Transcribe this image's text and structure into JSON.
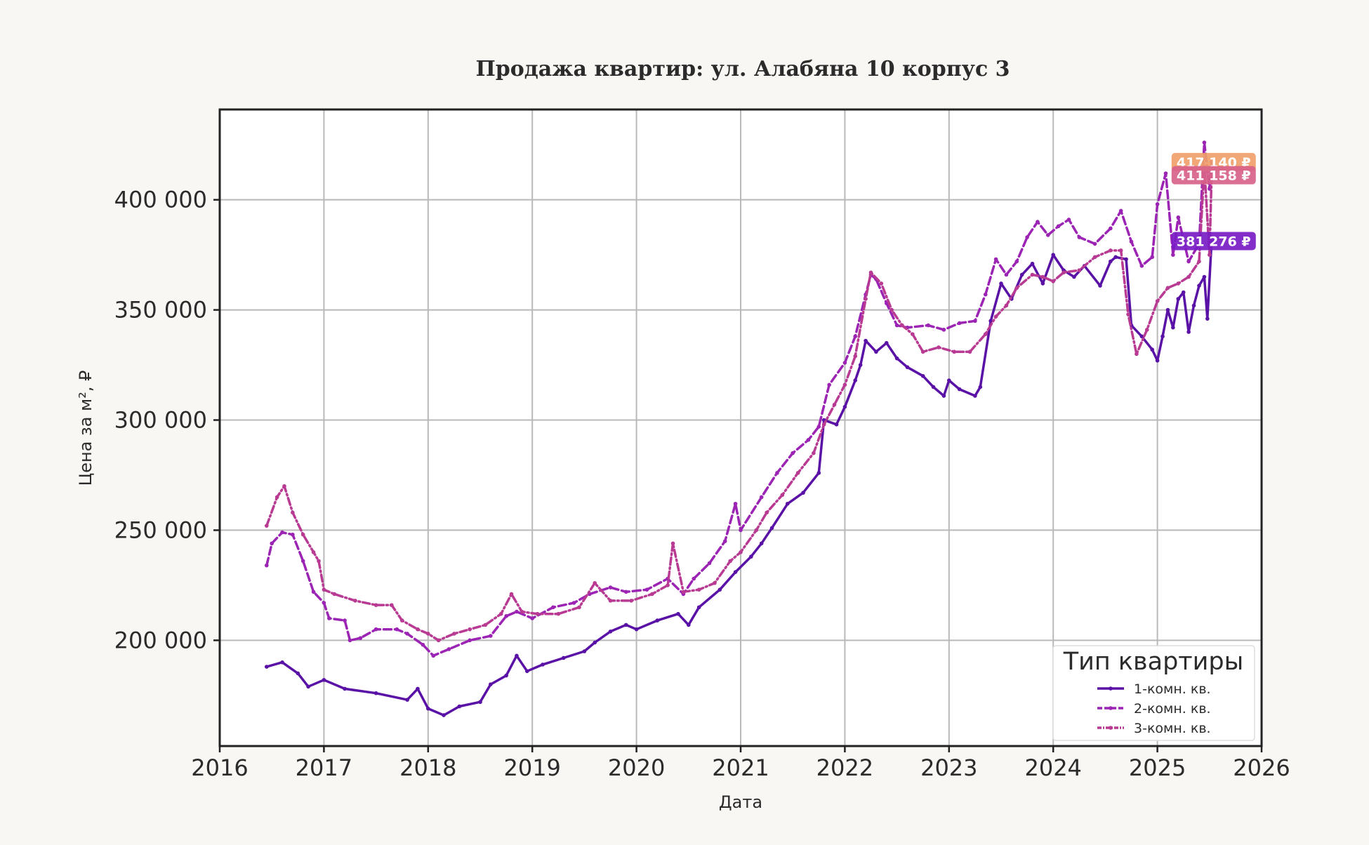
{
  "chart_data": {
    "type": "line",
    "title": "Продажа квартир: ул. Алабяна 10 корпус 3",
    "xlabel": "Дата",
    "ylabel": "Цена за м², ₽",
    "x_ticks": [
      "2016",
      "2017",
      "2018",
      "2019",
      "2020",
      "2021",
      "2022",
      "2023",
      "2024",
      "2025",
      "2026"
    ],
    "y_ticks": [
      {
        "value": 200000,
        "label": "200 000"
      },
      {
        "value": 250000,
        "label": "250 000"
      },
      {
        "value": 300000,
        "label": "300 000"
      },
      {
        "value": 350000,
        "label": "350 000"
      },
      {
        "value": 400000,
        "label": "400 000"
      }
    ],
    "xlim": [
      2016.0,
      2026.0
    ],
    "ylim": [
      152000,
      441000
    ],
    "grid": true,
    "legend": {
      "title": "Тип квартиры",
      "position": "lower-right"
    },
    "series": [
      {
        "name": "1-комн. кв.",
        "color": "#5a12a6",
        "dash": "solid",
        "end_label": "381 276 ₽",
        "badge_color": "#7a1cc4",
        "points": [
          [
            2016.45,
            188000
          ],
          [
            2016.6,
            190000
          ],
          [
            2016.75,
            185000
          ],
          [
            2016.85,
            179000
          ],
          [
            2017.0,
            182000
          ],
          [
            2017.2,
            178000
          ],
          [
            2017.5,
            176000
          ],
          [
            2017.8,
            173000
          ],
          [
            2017.9,
            178000
          ],
          [
            2018.0,
            169000
          ],
          [
            2018.15,
            166000
          ],
          [
            2018.3,
            170000
          ],
          [
            2018.5,
            172000
          ],
          [
            2018.6,
            180000
          ],
          [
            2018.75,
            184000
          ],
          [
            2018.85,
            193000
          ],
          [
            2018.95,
            186000
          ],
          [
            2019.1,
            189000
          ],
          [
            2019.3,
            192000
          ],
          [
            2019.5,
            195000
          ],
          [
            2019.6,
            199000
          ],
          [
            2019.75,
            204000
          ],
          [
            2019.9,
            207000
          ],
          [
            2020.0,
            205000
          ],
          [
            2020.2,
            209000
          ],
          [
            2020.4,
            212000
          ],
          [
            2020.5,
            207000
          ],
          [
            2020.6,
            215000
          ],
          [
            2020.8,
            223000
          ],
          [
            2020.95,
            231000
          ],
          [
            2021.1,
            238000
          ],
          [
            2021.2,
            244000
          ],
          [
            2021.3,
            251000
          ],
          [
            2021.45,
            262000
          ],
          [
            2021.6,
            267000
          ],
          [
            2021.75,
            276000
          ],
          [
            2021.8,
            300000
          ],
          [
            2021.92,
            298000
          ],
          [
            2022.0,
            306000
          ],
          [
            2022.1,
            318000
          ],
          [
            2022.15,
            325000
          ],
          [
            2022.2,
            336000
          ],
          [
            2022.3,
            331000
          ],
          [
            2022.4,
            335000
          ],
          [
            2022.5,
            328000
          ],
          [
            2022.6,
            324000
          ],
          [
            2022.75,
            320000
          ],
          [
            2022.85,
            315000
          ],
          [
            2022.95,
            311000
          ],
          [
            2023.0,
            318000
          ],
          [
            2023.1,
            314000
          ],
          [
            2023.25,
            311000
          ],
          [
            2023.3,
            315000
          ],
          [
            2023.4,
            345000
          ],
          [
            2023.5,
            362000
          ],
          [
            2023.6,
            355000
          ],
          [
            2023.7,
            366000
          ],
          [
            2023.8,
            371000
          ],
          [
            2023.9,
            362000
          ],
          [
            2024.0,
            375000
          ],
          [
            2024.1,
            368000
          ],
          [
            2024.2,
            365000
          ],
          [
            2024.3,
            370000
          ],
          [
            2024.45,
            361000
          ],
          [
            2024.55,
            372000
          ],
          [
            2024.6,
            374000
          ],
          [
            2024.7,
            373000
          ],
          [
            2024.75,
            343000
          ],
          [
            2024.85,
            338000
          ],
          [
            2024.95,
            332000
          ],
          [
            2025.0,
            327000
          ],
          [
            2025.05,
            338000
          ],
          [
            2025.1,
            350000
          ],
          [
            2025.15,
            342000
          ],
          [
            2025.2,
            355000
          ],
          [
            2025.25,
            358000
          ],
          [
            2025.3,
            340000
          ],
          [
            2025.35,
            352000
          ],
          [
            2025.4,
            361000
          ],
          [
            2025.45,
            365000
          ],
          [
            2025.48,
            346000
          ],
          [
            2025.52,
            381276
          ]
        ]
      },
      {
        "name": "2-комн. кв.",
        "color": "#9c24b4",
        "dash": "dashed",
        "end_label": "417 140 ₽",
        "badge_color": "#f0a06a",
        "points": [
          [
            2016.45,
            234000
          ],
          [
            2016.5,
            244000
          ],
          [
            2016.6,
            249000
          ],
          [
            2016.7,
            248000
          ],
          [
            2016.8,
            236000
          ],
          [
            2016.9,
            222000
          ],
          [
            2017.0,
            217000
          ],
          [
            2017.05,
            210000
          ],
          [
            2017.2,
            209000
          ],
          [
            2017.25,
            200000
          ],
          [
            2017.35,
            201000
          ],
          [
            2017.5,
            205000
          ],
          [
            2017.7,
            205000
          ],
          [
            2017.8,
            203000
          ],
          [
            2017.95,
            198000
          ],
          [
            2018.05,
            193000
          ],
          [
            2018.2,
            196000
          ],
          [
            2018.4,
            200000
          ],
          [
            2018.6,
            202000
          ],
          [
            2018.75,
            211000
          ],
          [
            2018.85,
            213000
          ],
          [
            2019.0,
            210000
          ],
          [
            2019.2,
            215000
          ],
          [
            2019.4,
            217000
          ],
          [
            2019.55,
            221000
          ],
          [
            2019.75,
            224000
          ],
          [
            2019.9,
            222000
          ],
          [
            2020.1,
            223000
          ],
          [
            2020.3,
            228000
          ],
          [
            2020.45,
            221000
          ],
          [
            2020.55,
            228000
          ],
          [
            2020.7,
            235000
          ],
          [
            2020.85,
            245000
          ],
          [
            2020.95,
            262000
          ],
          [
            2021.0,
            250000
          ],
          [
            2021.2,
            265000
          ],
          [
            2021.35,
            276000
          ],
          [
            2021.5,
            285000
          ],
          [
            2021.65,
            291000
          ],
          [
            2021.75,
            297000
          ],
          [
            2021.85,
            316000
          ],
          [
            2022.0,
            326000
          ],
          [
            2022.1,
            338000
          ],
          [
            2022.2,
            357000
          ],
          [
            2022.25,
            366000
          ],
          [
            2022.3,
            364000
          ],
          [
            2022.4,
            353000
          ],
          [
            2022.5,
            343000
          ],
          [
            2022.6,
            342000
          ],
          [
            2022.8,
            343000
          ],
          [
            2022.95,
            341000
          ],
          [
            2023.1,
            344000
          ],
          [
            2023.25,
            345000
          ],
          [
            2023.35,
            357000
          ],
          [
            2023.45,
            373000
          ],
          [
            2023.55,
            366000
          ],
          [
            2023.65,
            372000
          ],
          [
            2023.75,
            383000
          ],
          [
            2023.85,
            390000
          ],
          [
            2023.95,
            384000
          ],
          [
            2024.05,
            388000
          ],
          [
            2024.15,
            391000
          ],
          [
            2024.25,
            383000
          ],
          [
            2024.4,
            380000
          ],
          [
            2024.55,
            387000
          ],
          [
            2024.65,
            395000
          ],
          [
            2024.75,
            381000
          ],
          [
            2024.85,
            370000
          ],
          [
            2024.95,
            374000
          ],
          [
            2025.0,
            398000
          ],
          [
            2025.08,
            412000
          ],
          [
            2025.15,
            375000
          ],
          [
            2025.2,
            392000
          ],
          [
            2025.3,
            372000
          ],
          [
            2025.4,
            380000
          ],
          [
            2025.45,
            426000
          ],
          [
            2025.5,
            405000
          ],
          [
            2025.52,
            417140
          ]
        ]
      },
      {
        "name": "3-комн. кв.",
        "color": "#b83a92",
        "dash": "dashdot",
        "end_label": "411 158 ₽",
        "badge_color": "#d8628a",
        "points": [
          [
            2016.45,
            252000
          ],
          [
            2016.55,
            265000
          ],
          [
            2016.62,
            270000
          ],
          [
            2016.7,
            258000
          ],
          [
            2016.8,
            248000
          ],
          [
            2016.9,
            240000
          ],
          [
            2016.95,
            236000
          ],
          [
            2017.0,
            223000
          ],
          [
            2017.1,
            221000
          ],
          [
            2017.3,
            218000
          ],
          [
            2017.5,
            216000
          ],
          [
            2017.65,
            216000
          ],
          [
            2017.75,
            209000
          ],
          [
            2017.9,
            205000
          ],
          [
            2018.0,
            203000
          ],
          [
            2018.1,
            200000
          ],
          [
            2018.25,
            203000
          ],
          [
            2018.4,
            205000
          ],
          [
            2018.55,
            207000
          ],
          [
            2018.7,
            212000
          ],
          [
            2018.8,
            221000
          ],
          [
            2018.9,
            213000
          ],
          [
            2019.05,
            212000
          ],
          [
            2019.25,
            212000
          ],
          [
            2019.45,
            215000
          ],
          [
            2019.6,
            226000
          ],
          [
            2019.75,
            218000
          ],
          [
            2019.95,
            218000
          ],
          [
            2020.15,
            221000
          ],
          [
            2020.3,
            225000
          ],
          [
            2020.35,
            244000
          ],
          [
            2020.45,
            222000
          ],
          [
            2020.6,
            223000
          ],
          [
            2020.75,
            226000
          ],
          [
            2020.9,
            236000
          ],
          [
            2021.0,
            240000
          ],
          [
            2021.15,
            250000
          ],
          [
            2021.25,
            258000
          ],
          [
            2021.4,
            266000
          ],
          [
            2021.55,
            276000
          ],
          [
            2021.7,
            285000
          ],
          [
            2021.8,
            298000
          ],
          [
            2021.9,
            307000
          ],
          [
            2022.0,
            316000
          ],
          [
            2022.1,
            329000
          ],
          [
            2022.2,
            355000
          ],
          [
            2022.25,
            367000
          ],
          [
            2022.35,
            362000
          ],
          [
            2022.45,
            350000
          ],
          [
            2022.55,
            343000
          ],
          [
            2022.65,
            339000
          ],
          [
            2022.75,
            331000
          ],
          [
            2022.9,
            333000
          ],
          [
            2023.05,
            331000
          ],
          [
            2023.2,
            331000
          ],
          [
            2023.35,
            339000
          ],
          [
            2023.45,
            347000
          ],
          [
            2023.55,
            352000
          ],
          [
            2023.65,
            360000
          ],
          [
            2023.8,
            366000
          ],
          [
            2023.9,
            365000
          ],
          [
            2024.0,
            363000
          ],
          [
            2024.1,
            367000
          ],
          [
            2024.25,
            368000
          ],
          [
            2024.4,
            374000
          ],
          [
            2024.55,
            377000
          ],
          [
            2024.65,
            377000
          ],
          [
            2024.72,
            348000
          ],
          [
            2024.8,
            330000
          ],
          [
            2024.9,
            341000
          ],
          [
            2025.0,
            354000
          ],
          [
            2025.1,
            360000
          ],
          [
            2025.2,
            362000
          ],
          [
            2025.3,
            365000
          ],
          [
            2025.4,
            372000
          ],
          [
            2025.45,
            415000
          ],
          [
            2025.5,
            375000
          ],
          [
            2025.52,
            411158
          ]
        ]
      }
    ]
  }
}
